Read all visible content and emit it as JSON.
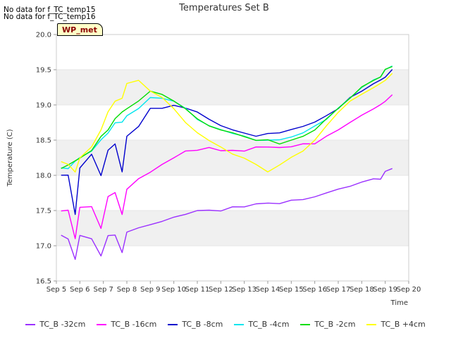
{
  "notes": [
    "No data for f_TC_temp15",
    "No data for f_TC_temp16"
  ],
  "badge": "WP_met",
  "chart_data": {
    "type": "line",
    "title": "Temperatures Set B",
    "xlabel": "Time",
    "ylabel": "Temperature (C)",
    "x_ticks": [
      "Sep 5",
      "Sep 6",
      "Sep 7",
      "Sep 8",
      "Sep 9",
      "Sep 10",
      "Sep 11",
      "Sep 12",
      "Sep 13",
      "Sep 14",
      "Sep 15",
      "Sep 16",
      "Sep 17",
      "Sep 18",
      "Sep 19",
      "Sep 20"
    ],
    "xlim": [
      5,
      20
    ],
    "ylim": [
      16.5,
      20.0
    ],
    "y_ticks": [
      16.5,
      17.0,
      17.5,
      18.0,
      18.5,
      19.0,
      19.5,
      20.0
    ],
    "bands": [
      [
        17.0,
        17.5
      ],
      [
        18.0,
        18.5
      ],
      [
        19.0,
        19.5
      ]
    ],
    "legend_placement": "bottom",
    "x": [
      5.2,
      5.5,
      5.8,
      6.0,
      6.5,
      6.9,
      7.2,
      7.5,
      7.8,
      8.0,
      8.5,
      9.0,
      9.5,
      10.0,
      10.5,
      11.0,
      11.5,
      12.0,
      12.5,
      13.0,
      13.5,
      14.0,
      14.5,
      15.0,
      15.5,
      16.0,
      16.5,
      17.0,
      17.5,
      18.0,
      18.5,
      18.8,
      19.0,
      19.3
    ],
    "series": [
      {
        "name": "TC_B -32cm",
        "color": "#9b30ff",
        "values": [
          17.15,
          17.1,
          16.8,
          17.15,
          17.1,
          16.85,
          17.15,
          17.15,
          16.9,
          17.2,
          17.25,
          17.3,
          17.35,
          17.4,
          17.45,
          17.5,
          17.5,
          17.5,
          17.55,
          17.55,
          17.6,
          17.6,
          17.6,
          17.65,
          17.65,
          17.7,
          17.75,
          17.8,
          17.85,
          17.9,
          17.95,
          17.95,
          18.05,
          18.1
        ]
      },
      {
        "name": "TC_B -16cm",
        "color": "#ff00ff",
        "values": [
          17.5,
          17.5,
          17.1,
          17.55,
          17.55,
          17.25,
          17.7,
          17.75,
          17.45,
          17.8,
          17.95,
          18.05,
          18.15,
          18.25,
          18.35,
          18.35,
          18.4,
          18.35,
          18.35,
          18.35,
          18.4,
          18.4,
          18.4,
          18.4,
          18.45,
          18.45,
          18.55,
          18.65,
          18.75,
          18.85,
          18.95,
          19.0,
          19.05,
          19.15
        ]
      },
      {
        "name": "TC_B -8cm",
        "color": "#0000cd",
        "values": [
          18.0,
          18.0,
          17.45,
          18.1,
          18.3,
          18.0,
          18.35,
          18.45,
          18.05,
          18.55,
          18.7,
          18.95,
          18.95,
          19.0,
          18.95,
          18.9,
          18.8,
          18.7,
          18.65,
          18.6,
          18.55,
          18.6,
          18.6,
          18.65,
          18.7,
          18.75,
          18.85,
          18.95,
          19.1,
          19.2,
          19.3,
          19.35,
          19.4,
          19.5
        ]
      },
      {
        "name": "TC_B -4cm",
        "color": "#00e5ee",
        "values": [
          18.1,
          18.1,
          18.2,
          18.25,
          18.35,
          18.5,
          18.6,
          18.75,
          18.75,
          18.85,
          18.95,
          19.1,
          19.1,
          19.05,
          18.95,
          18.8,
          18.7,
          18.65,
          18.6,
          18.55,
          18.5,
          18.5,
          18.5,
          18.55,
          18.6,
          18.7,
          18.8,
          18.95,
          19.1,
          19.25,
          19.35,
          19.4,
          19.5,
          19.55
        ]
      },
      {
        "name": "TC_B -2cm",
        "color": "#00dd00",
        "values": [
          18.1,
          18.15,
          18.2,
          18.25,
          18.35,
          18.55,
          18.65,
          18.8,
          18.9,
          18.95,
          19.05,
          19.2,
          19.15,
          19.05,
          18.95,
          18.8,
          18.7,
          18.65,
          18.6,
          18.55,
          18.5,
          18.5,
          18.45,
          18.5,
          18.55,
          18.65,
          18.8,
          18.95,
          19.1,
          19.25,
          19.35,
          19.4,
          19.5,
          19.55
        ]
      },
      {
        "name": "TC_B +4cm",
        "color": "#ffff00",
        "values": [
          18.2,
          18.15,
          18.05,
          18.25,
          18.4,
          18.65,
          18.9,
          19.05,
          19.1,
          19.3,
          19.35,
          19.2,
          19.1,
          18.95,
          18.75,
          18.6,
          18.5,
          18.4,
          18.3,
          18.25,
          18.15,
          18.05,
          18.15,
          18.25,
          18.35,
          18.5,
          18.7,
          18.9,
          19.05,
          19.15,
          19.25,
          19.3,
          19.35,
          19.45
        ]
      }
    ]
  }
}
